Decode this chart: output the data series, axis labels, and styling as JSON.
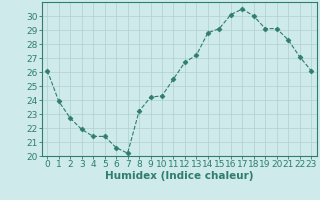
{
  "x": [
    0,
    1,
    2,
    3,
    4,
    5,
    6,
    7,
    8,
    9,
    10,
    11,
    12,
    13,
    14,
    15,
    16,
    17,
    18,
    19,
    20,
    21,
    22,
    23
  ],
  "y": [
    26.1,
    23.9,
    22.7,
    21.9,
    21.4,
    21.4,
    20.6,
    20.2,
    23.2,
    24.2,
    24.3,
    25.5,
    26.7,
    27.2,
    28.8,
    29.1,
    30.1,
    30.5,
    30.0,
    29.1,
    29.1,
    28.3,
    27.1,
    26.1
  ],
  "line_color": "#2e7d6e",
  "marker": "D",
  "marker_size": 2.5,
  "bg_color": "#ceeaea",
  "grid_color": "#b0cfcf",
  "xlabel": "Humidex (Indice chaleur)",
  "ylim": [
    20,
    31
  ],
  "xlim": [
    -0.5,
    23.5
  ],
  "yticks": [
    20,
    21,
    22,
    23,
    24,
    25,
    26,
    27,
    28,
    29,
    30
  ],
  "xticks": [
    0,
    1,
    2,
    3,
    4,
    5,
    6,
    7,
    8,
    9,
    10,
    11,
    12,
    13,
    14,
    15,
    16,
    17,
    18,
    19,
    20,
    21,
    22,
    23
  ],
  "font_color": "#2e7d6e",
  "xlabel_fontsize": 7.5,
  "tick_fontsize": 6.5
}
